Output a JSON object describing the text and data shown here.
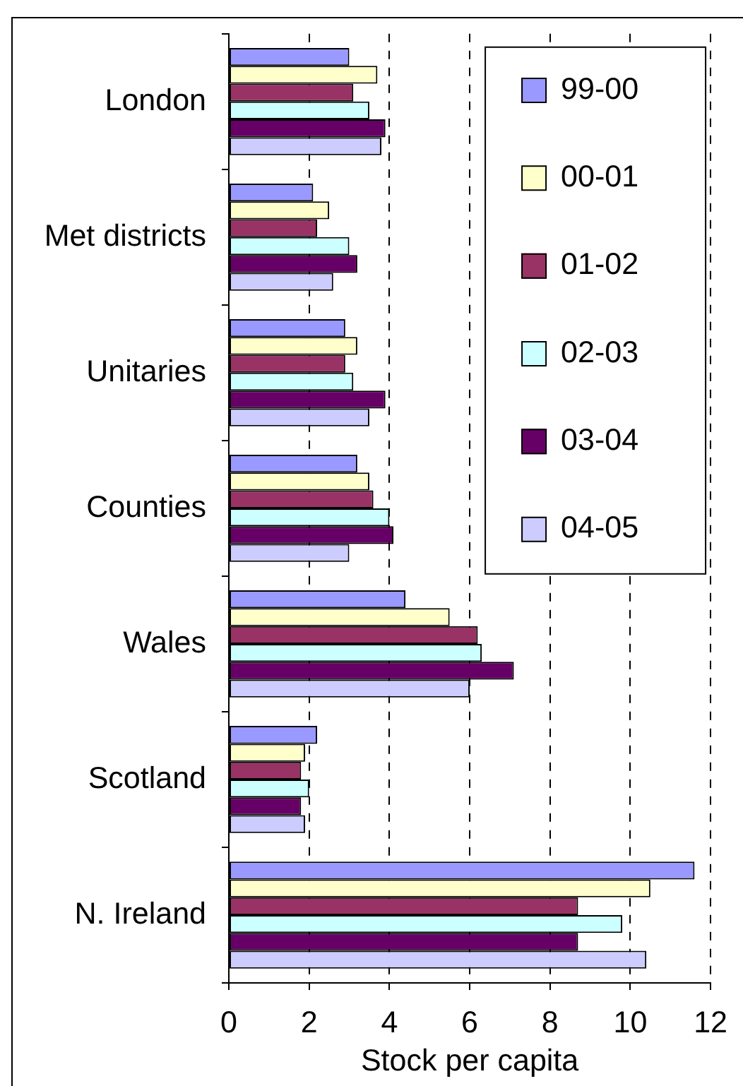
{
  "chart_data": {
    "type": "bar",
    "orientation": "horizontal",
    "categories": [
      "London",
      "Met districts",
      "Unitaries",
      "Counties",
      "Wales",
      "Scotland",
      "N. Ireland"
    ],
    "series": [
      {
        "name": "99-00",
        "color": "#9999ff",
        "values": [
          3.0,
          2.1,
          2.9,
          3.2,
          4.4,
          2.2,
          11.6
        ]
      },
      {
        "name": "00-01",
        "color": "#ffffcc",
        "values": [
          3.7,
          2.5,
          3.2,
          3.5,
          5.5,
          1.9,
          10.5
        ]
      },
      {
        "name": "01-02",
        "color": "#993366",
        "values": [
          3.1,
          2.2,
          2.9,
          3.6,
          6.2,
          1.8,
          8.7
        ]
      },
      {
        "name": "02-03",
        "color": "#ccffff",
        "values": [
          3.5,
          3.0,
          3.1,
          4.0,
          6.3,
          2.0,
          9.8
        ]
      },
      {
        "name": "03-04",
        "color": "#660066",
        "values": [
          3.9,
          3.2,
          3.9,
          4.1,
          7.1,
          1.8,
          8.7
        ]
      },
      {
        "name": "04-05",
        "color": "#ccccff",
        "values": [
          3.8,
          2.6,
          3.5,
          3.0,
          6.0,
          1.9,
          10.4
        ]
      }
    ],
    "xlabel": "Stock per capita",
    "xlim": [
      0,
      12
    ],
    "xticks": [
      0,
      2,
      4,
      6,
      8,
      10,
      12
    ],
    "grid": "x",
    "legend": "top right"
  }
}
